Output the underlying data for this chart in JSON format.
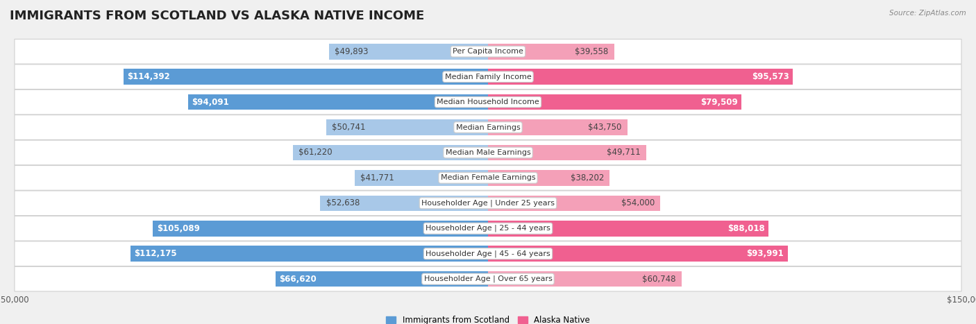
{
  "title": "IMMIGRANTS FROM SCOTLAND VS ALASKA NATIVE INCOME",
  "source": "Source: ZipAtlas.com",
  "categories": [
    "Per Capita Income",
    "Median Family Income",
    "Median Household Income",
    "Median Earnings",
    "Median Male Earnings",
    "Median Female Earnings",
    "Householder Age | Under 25 years",
    "Householder Age | 25 - 44 years",
    "Householder Age | 45 - 64 years",
    "Householder Age | Over 65 years"
  ],
  "scotland_values": [
    49893,
    114392,
    94091,
    50741,
    61220,
    41771,
    52638,
    105089,
    112175,
    66620
  ],
  "alaska_values": [
    39558,
    95573,
    79509,
    43750,
    49711,
    38202,
    54000,
    88018,
    93991,
    60748
  ],
  "scotland_labels": [
    "$49,893",
    "$114,392",
    "$94,091",
    "$50,741",
    "$61,220",
    "$41,771",
    "$52,638",
    "$105,089",
    "$112,175",
    "$66,620"
  ],
  "alaska_labels": [
    "$39,558",
    "$95,573",
    "$79,509",
    "$43,750",
    "$49,711",
    "$38,202",
    "$54,000",
    "$88,018",
    "$93,991",
    "$60,748"
  ],
  "scotland_color_light": "#a8c8e8",
  "scotland_color_dark": "#5b9bd5",
  "alaska_color_light": "#f4a0b8",
  "alaska_color_dark": "#f06090",
  "max_value": 150000,
  "bar_height": 0.62,
  "bg_color": "#f0f0f0",
  "row_bg_color": "#ffffff",
  "title_fontsize": 13,
  "label_fontsize": 8.5,
  "category_fontsize": 8.0,
  "inside_threshold": 65000,
  "legend_scotland": "Immigrants from Scotland",
  "legend_alaska": "Alaska Native"
}
